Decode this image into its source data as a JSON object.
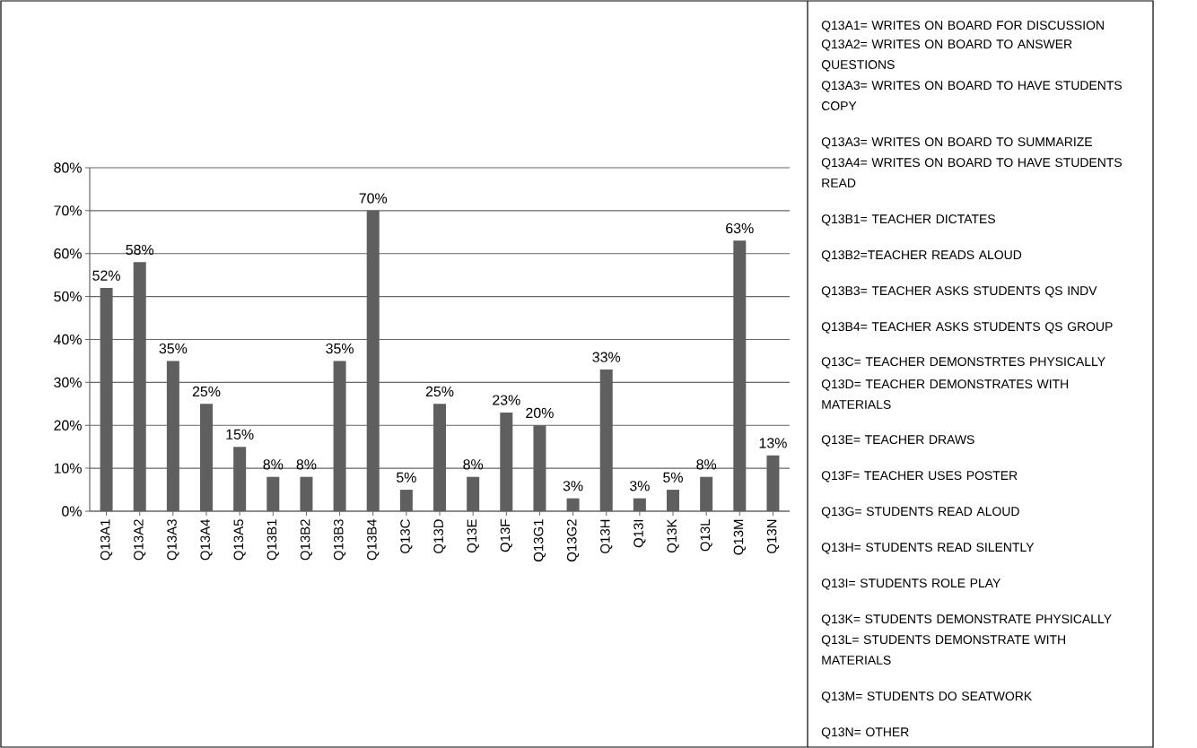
{
  "chart_data": {
    "type": "bar",
    "categories": [
      "Q13A1",
      "Q13A2",
      "Q13A3",
      "Q13A4",
      "Q13A5",
      "Q13B1",
      "Q13B2",
      "Q13B3",
      "Q13B4",
      "Q13C",
      "Q13D",
      "Q13E",
      "Q13F",
      "Q13G1",
      "Q13G2",
      "Q13H",
      "Q13I",
      "Q13K",
      "Q13L",
      "Q13M",
      "Q13N"
    ],
    "values": [
      52,
      58,
      35,
      25,
      15,
      8,
      8,
      35,
      70,
      5,
      25,
      8,
      23,
      20,
      3,
      33,
      3,
      5,
      8,
      63,
      13
    ],
    "value_labels": [
      "52%",
      "58%",
      "35%",
      "25%",
      "15%",
      "8%",
      "8%",
      "35%",
      "70%",
      "5%",
      "25%",
      "8%",
      "23%",
      "20%",
      "3%",
      "33%",
      "3%",
      "5%",
      "8%",
      "63%",
      "13%"
    ],
    "color": "#5f5f5f",
    "ylim": [
      0,
      80
    ],
    "yticks": [
      {
        "value": 0,
        "label": "0%"
      },
      {
        "value": 10,
        "label": "10%"
      },
      {
        "value": 20,
        "label": "20%"
      },
      {
        "value": 30,
        "label": "30%"
      },
      {
        "value": 40,
        "label": "40%"
      },
      {
        "value": 50,
        "label": "50%"
      },
      {
        "value": 60,
        "label": "60%"
      },
      {
        "value": 70,
        "label": "70%"
      },
      {
        "value": 80,
        "label": "80%"
      }
    ],
    "grid": "y",
    "annotations": [
      "Q13A1= WRITES ON BOARD FOR DISCUSSION",
      "Q13A2= WRITES ON BOARD TO ANSWER QUESTIONS",
      "Q13A3= WRITES ON BOARD TO HAVE STUDENTS COPY",
      "Q13A3= WRITES ON BOARD TO SUMMARIZE",
      "Q13A4= WRITES ON BOARD TO HAVE STUDENTS READ",
      "Q13B1= TEACHER DICTATES",
      "Q13B2=TEACHER READS ALOUD",
      "Q13B3= TEACHER ASKS STUDENTS QS INDV",
      "Q13B4= TEACHER ASKS STUDENTS QS GROUP",
      "Q13C= TEACHER DEMONSTRTES PHYSICALLY",
      "Q13D= TEACHER DEMONSTRATES WITH MATERIALS",
      "Q13E= TEACHER DRAWS",
      "Q13F= TEACHER USES POSTER",
      "Q13G= STUDENTS READ ALOUD",
      "Q13H= STUDENTS READ SILENTLY",
      "Q13I= STUDENTS ROLE PLAY",
      "Q13K= STUDENTS DEMONSTRATE PHYSICALLY",
      "Q13L= STUDENTS DEMONSTRATE WITH MATERIALS",
      "Q13M= STUDENTS DO SEATWORK",
      "Q13N= OTHER"
    ]
  }
}
